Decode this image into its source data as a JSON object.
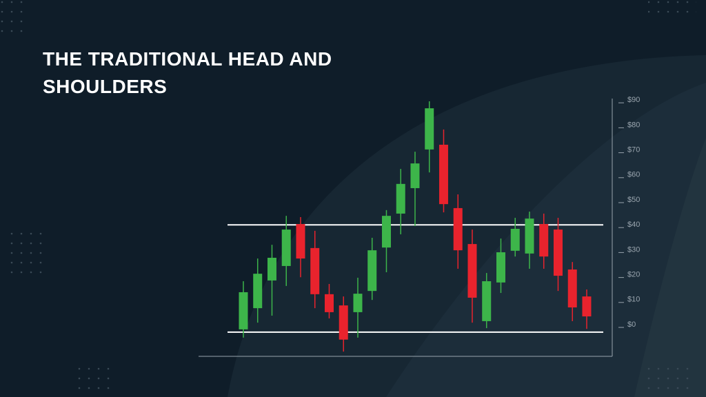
{
  "chart_data": {
    "type": "candlestick",
    "title": "THE TRADITIONAL HEAD AND SHOULDERS",
    "categories": [
      null,
      null,
      null,
      null,
      null,
      null,
      null,
      null,
      null,
      null,
      null,
      null,
      null,
      null,
      null,
      null,
      null,
      null,
      null,
      null,
      null,
      null,
      null,
      null,
      null
    ],
    "open": [
      -1.9,
      6.6,
      17.7,
      23.5,
      40.3,
      30.7,
      12.2,
      7.7,
      5.0,
      13.5,
      30.9,
      44.5,
      54.7,
      70.2,
      72.1,
      46.7,
      32.3,
      1.4,
      16.9,
      29.6,
      28.5,
      40.3,
      38.1,
      22.1,
      11.3
    ],
    "high": [
      17.4,
      26.5,
      32.0,
      43.6,
      43.1,
      37.6,
      16.3,
      11.3,
      18.8,
      34.8,
      45.9,
      62.4,
      69.3,
      89.5,
      78.2,
      52.2,
      38.1,
      20.7,
      34.5,
      42.8,
      45.3,
      44.5,
      42.8,
      25.1,
      14.1
    ],
    "low": [
      -5.2,
      0.8,
      3.6,
      15.5,
      19.0,
      6.6,
      2.5,
      -10.8,
      -5.2,
      9.9,
      21.0,
      36.2,
      39.5,
      61.0,
      45.0,
      22.4,
      0.8,
      -1.4,
      12.7,
      27.3,
      22.4,
      22.4,
      13.5,
      1.4,
      -1.7
    ],
    "close": [
      13.0,
      20.4,
      26.8,
      38.1,
      26.5,
      12.2,
      5.0,
      -6.0,
      12.4,
      29.8,
      43.6,
      56.4,
      64.6,
      86.7,
      48.3,
      29.8,
      10.8,
      17.4,
      29.0,
      38.4,
      42.5,
      27.3,
      19.6,
      6.9,
      3.3
    ],
    "up_color": "#3db54a",
    "down_color": "#e9232d",
    "levels": [
      40,
      -3
    ],
    "ylim": [
      -12.7,
      90.6
    ],
    "yticks": [
      {
        "value": 0,
        "label": "$0"
      },
      {
        "value": 10,
        "label": "$10"
      },
      {
        "value": 20,
        "label": "$20"
      },
      {
        "value": 30,
        "label": "$30"
      },
      {
        "value": 40,
        "label": "$40"
      },
      {
        "value": 50,
        "label": "$50"
      },
      {
        "value": 60,
        "label": "$60"
      },
      {
        "value": 70,
        "label": "$70"
      },
      {
        "value": 80,
        "label": "$80"
      },
      {
        "value": 90,
        "label": "$90"
      }
    ]
  }
}
